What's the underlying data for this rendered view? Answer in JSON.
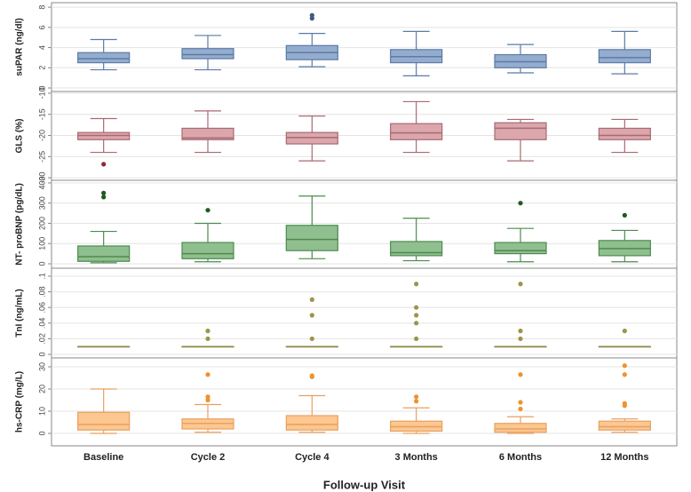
{
  "categories": [
    "Baseline",
    "Cycle 2",
    "Cycle 4",
    "3 Months",
    "6 Months",
    "12 Months"
  ],
  "xlabel": "Follow-up Visit",
  "chart_data": [
    {
      "type": "box",
      "ylabel": "suPAR (ng/dl)",
      "ylim": [
        -0.35,
        8.45
      ],
      "yticks": [
        0,
        2,
        4,
        6,
        8
      ],
      "grid": true,
      "fill": "#94adcf",
      "edge": "#5b7ba6",
      "outlier_color": "#3d5a80",
      "boxes": [
        {
          "low": 1.8,
          "q1": 2.5,
          "median": 2.9,
          "q3": 3.5,
          "high": 4.8,
          "outliers": []
        },
        {
          "low": 1.8,
          "q1": 2.9,
          "median": 3.3,
          "q3": 3.9,
          "high": 5.2,
          "outliers": []
        },
        {
          "low": 2.1,
          "q1": 2.8,
          "median": 3.5,
          "q3": 4.2,
          "high": 5.4,
          "outliers": [
            6.9,
            7.2
          ]
        },
        {
          "low": 1.2,
          "q1": 2.5,
          "median": 3.1,
          "q3": 3.8,
          "high": 5.6,
          "outliers": []
        },
        {
          "low": 1.5,
          "q1": 2.0,
          "median": 2.6,
          "q3": 3.3,
          "high": 4.3,
          "outliers": []
        },
        {
          "low": 1.4,
          "q1": 2.5,
          "median": 3.0,
          "q3": 3.8,
          "high": 5.6,
          "outliers": []
        }
      ]
    },
    {
      "type": "box",
      "ylabel": "GLS (%)",
      "ylim": [
        -30.6,
        -9.6
      ],
      "yticks": [
        -30,
        -25,
        -20,
        -15,
        -10
      ],
      "grid": true,
      "fill": "#dba7ac",
      "edge": "#a86a72",
      "outlier_color": "#8b2a3a",
      "boxes": [
        {
          "low": -24,
          "q1": -21,
          "median": -20,
          "q3": -19.3,
          "high": -16,
          "outliers": [
            -26.8
          ]
        },
        {
          "low": -24,
          "q1": -21,
          "median": -20.6,
          "q3": -18.3,
          "high": -14.2,
          "outliers": []
        },
        {
          "low": -26,
          "q1": -22,
          "median": -20.5,
          "q3": -19.3,
          "high": -15.4,
          "outliers": []
        },
        {
          "low": -24,
          "q1": -21,
          "median": -19.4,
          "q3": -17.2,
          "high": -12,
          "outliers": []
        },
        {
          "low": -26,
          "q1": -21,
          "median": -18.3,
          "q3": -17,
          "high": -16.2,
          "outliers": []
        },
        {
          "low": -24,
          "q1": -21,
          "median": -20,
          "q3": -18.3,
          "high": -16.2,
          "outliers": []
        }
      ]
    },
    {
      "type": "box",
      "ylabel": "NT- proBNP (pg/dL)",
      "ylim": [
        -22,
        413
      ],
      "yticks": [
        0,
        100,
        200,
        300,
        400
      ],
      "grid": true,
      "fill": "#8fbf8f",
      "edge": "#4f8a4f",
      "outlier_color": "#1e5b1e",
      "boxes": [
        {
          "low": 5,
          "q1": 12,
          "median": 35,
          "q3": 88,
          "high": 160,
          "outliers": [
            330,
            350
          ]
        },
        {
          "low": 10,
          "q1": 25,
          "median": 50,
          "q3": 105,
          "high": 200,
          "outliers": [
            265
          ]
        },
        {
          "low": 25,
          "q1": 65,
          "median": 120,
          "q3": 190,
          "high": 335,
          "outliers": []
        },
        {
          "low": 15,
          "q1": 40,
          "median": 55,
          "q3": 110,
          "high": 225,
          "outliers": []
        },
        {
          "low": 10,
          "q1": 50,
          "median": 65,
          "q3": 105,
          "high": 175,
          "outliers": [
            300
          ]
        },
        {
          "low": 10,
          "q1": 40,
          "median": 75,
          "q3": 115,
          "high": 165,
          "outliers": [
            240
          ]
        }
      ]
    },
    {
      "type": "box",
      "ylabel": "TnI (ng/mL)",
      "ylim": [
        -0.0045,
        0.1102
      ],
      "yticks": [
        0,
        {
          "value": 0.02,
          "label": ".02"
        },
        {
          "value": 0.04,
          "label": ".04"
        },
        {
          "value": 0.06,
          "label": ".06"
        },
        {
          "value": 0.08,
          "label": ".08"
        },
        {
          "value": 0.1,
          "label": ".1"
        }
      ],
      "grid": true,
      "fill": "#c9c58c",
      "edge": "#8f8a4a",
      "outlier_color": "#9a9548",
      "boxes": [
        {
          "low": 0.01,
          "q1": 0.01,
          "median": 0.01,
          "q3": 0.01,
          "high": 0.01,
          "outliers": []
        },
        {
          "low": 0.01,
          "q1": 0.01,
          "median": 0.01,
          "q3": 0.01,
          "high": 0.01,
          "outliers": [
            0.02,
            0.03
          ]
        },
        {
          "low": 0.01,
          "q1": 0.01,
          "median": 0.01,
          "q3": 0.01,
          "high": 0.01,
          "outliers": [
            0.02,
            0.05,
            0.07
          ]
        },
        {
          "low": 0.01,
          "q1": 0.01,
          "median": 0.01,
          "q3": 0.01,
          "high": 0.01,
          "outliers": [
            0.02,
            0.04,
            0.05,
            0.06,
            0.09
          ]
        },
        {
          "low": 0.01,
          "q1": 0.01,
          "median": 0.01,
          "q3": 0.01,
          "high": 0.01,
          "outliers": [
            0.02,
            0.03,
            0.09
          ]
        },
        {
          "low": 0.01,
          "q1": 0.01,
          "median": 0.01,
          "q3": 0.01,
          "high": 0.01,
          "outliers": [
            0.03
          ]
        }
      ]
    },
    {
      "type": "box",
      "ylabel": "hs-CRP (mg/L)",
      "ylim": [
        -5.6,
        34
      ],
      "yticks": [
        0,
        10,
        20,
        30
      ],
      "grid": true,
      "fill": "#fcc790",
      "edge": "#e8a060",
      "outlier_color": "#f0922e",
      "boxes": [
        {
          "low": 0,
          "q1": 1.5,
          "median": 4,
          "q3": 9.5,
          "high": 20,
          "outliers": []
        },
        {
          "low": 0.5,
          "q1": 2,
          "median": 4.5,
          "q3": 6.5,
          "high": 13,
          "outliers": [
            15,
            16.5,
            26.5
          ]
        },
        {
          "low": 0.5,
          "q1": 1.5,
          "median": 4,
          "q3": 8,
          "high": 17,
          "outliers": [
            25.5,
            26
          ]
        },
        {
          "low": 0,
          "q1": 1,
          "median": 3,
          "q3": 5.5,
          "high": 11.5,
          "outliers": [
            14.5,
            16.5
          ]
        },
        {
          "low": 0,
          "q1": 0.5,
          "median": 2,
          "q3": 4.5,
          "high": 7.5,
          "outliers": [
            11,
            14,
            26.5
          ]
        },
        {
          "low": 0.5,
          "q1": 1.5,
          "median": 3,
          "q3": 5.5,
          "high": 6.5,
          "outliers": [
            12.5,
            13.5,
            26.5,
            30.5
          ]
        }
      ]
    }
  ]
}
